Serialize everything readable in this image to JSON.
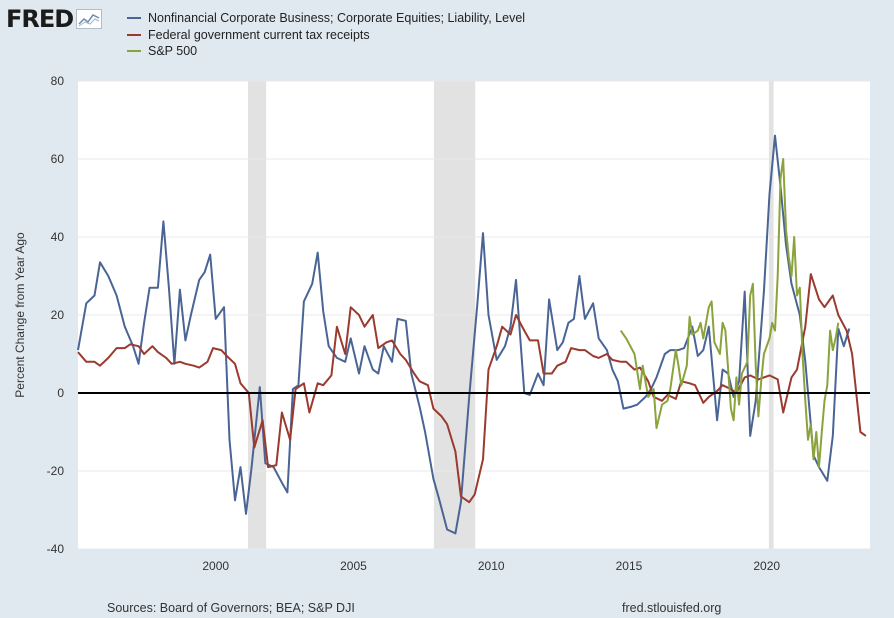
{
  "header": {
    "logo_text": "FRED",
    "logo_mark": "chart-sparkline-icon"
  },
  "legend": [
    {
      "label": "Nonfinancial Corporate Business; Corporate Equities; Liability, Level",
      "color": "#4a6595"
    },
    {
      "label": "Federal government current tax receipts",
      "color": "#9b3a2e"
    },
    {
      "label": "S&P 500",
      "color": "#8ba33c"
    }
  ],
  "footer": {
    "source": "Sources: Board of Governors; BEA; S&P DJI",
    "url": "fred.stlouisfed.org"
  },
  "chart_data": {
    "type": "line",
    "title": "",
    "xlabel": "",
    "ylabel": "Percent Change from Year Ago",
    "xlim": [
      1995.0,
      2023.75
    ],
    "ylim": [
      -40,
      80
    ],
    "x_ticks": [
      2000,
      2005,
      2010,
      2015,
      2020
    ],
    "y_ticks": [
      -40,
      -20,
      0,
      20,
      40,
      60,
      80
    ],
    "grid": true,
    "zero_line": true,
    "recessions": [
      [
        2001.17,
        2001.83
      ],
      [
        2007.92,
        2009.42
      ],
      [
        2020.08,
        2020.25
      ]
    ],
    "series": [
      {
        "name": "Nonfinancial Corporate Business; Corporate Equities; Liability, Level",
        "color": "#4a6595",
        "points": [
          [
            1995.0,
            11
          ],
          [
            1995.3,
            23
          ],
          [
            1995.6,
            25
          ],
          [
            1995.8,
            33.5
          ],
          [
            1996.1,
            30
          ],
          [
            1996.4,
            25
          ],
          [
            1996.7,
            17
          ],
          [
            1997.0,
            12
          ],
          [
            1997.2,
            7.5
          ],
          [
            1997.4,
            18
          ],
          [
            1997.6,
            27
          ],
          [
            1997.9,
            27
          ],
          [
            1998.1,
            44
          ],
          [
            1998.3,
            27
          ],
          [
            1998.5,
            7.5
          ],
          [
            1998.7,
            26.5
          ],
          [
            1998.9,
            13.5
          ],
          [
            1999.1,
            20
          ],
          [
            1999.4,
            29
          ],
          [
            1999.6,
            31
          ],
          [
            1999.8,
            35.5
          ],
          [
            2000.0,
            19
          ],
          [
            2000.3,
            22
          ],
          [
            2000.5,
            -12
          ],
          [
            2000.7,
            -27.5
          ],
          [
            2000.9,
            -19
          ],
          [
            2001.1,
            -31
          ],
          [
            2001.3,
            -19
          ],
          [
            2001.6,
            1.5
          ],
          [
            2001.8,
            -18
          ],
          [
            2002.1,
            -19
          ],
          [
            2002.4,
            -23
          ],
          [
            2002.6,
            -25.5
          ],
          [
            2002.8,
            1
          ],
          [
            2003.0,
            2
          ],
          [
            2003.2,
            23.5
          ],
          [
            2003.5,
            28
          ],
          [
            2003.7,
            36
          ],
          [
            2003.9,
            21
          ],
          [
            2004.1,
            12
          ],
          [
            2004.4,
            9
          ],
          [
            2004.7,
            8
          ],
          [
            2004.9,
            14
          ],
          [
            2005.2,
            5
          ],
          [
            2005.4,
            12
          ],
          [
            2005.7,
            6
          ],
          [
            2005.9,
            5
          ],
          [
            2006.1,
            12
          ],
          [
            2006.4,
            8
          ],
          [
            2006.6,
            19
          ],
          [
            2006.9,
            18.5
          ],
          [
            2007.1,
            5
          ],
          [
            2007.4,
            -3.5
          ],
          [
            2007.6,
            -10
          ],
          [
            2007.9,
            -22
          ],
          [
            2008.1,
            -27
          ],
          [
            2008.4,
            -35
          ],
          [
            2008.7,
            -36
          ],
          [
            2008.9,
            -28
          ],
          [
            2009.2,
            -1
          ],
          [
            2009.5,
            23
          ],
          [
            2009.7,
            41
          ],
          [
            2009.9,
            20
          ],
          [
            2010.2,
            8.5
          ],
          [
            2010.5,
            12
          ],
          [
            2010.7,
            17
          ],
          [
            2010.9,
            29
          ],
          [
            2011.2,
            0
          ],
          [
            2011.4,
            -0.5
          ],
          [
            2011.7,
            5
          ],
          [
            2011.9,
            2
          ],
          [
            2012.1,
            24
          ],
          [
            2012.4,
            11
          ],
          [
            2012.6,
            13
          ],
          [
            2012.8,
            18
          ],
          [
            2013.0,
            19
          ],
          [
            2013.2,
            30
          ],
          [
            2013.4,
            19
          ],
          [
            2013.7,
            23
          ],
          [
            2013.9,
            14
          ],
          [
            2014.2,
            11
          ],
          [
            2014.4,
            6
          ],
          [
            2014.6,
            3
          ],
          [
            2014.8,
            -4
          ],
          [
            2015.1,
            -3.5
          ],
          [
            2015.3,
            -3
          ],
          [
            2015.6,
            -1
          ],
          [
            2015.8,
            1
          ],
          [
            2016.0,
            4
          ],
          [
            2016.3,
            10
          ],
          [
            2016.5,
            11
          ],
          [
            2016.8,
            11
          ],
          [
            2017.0,
            11.5
          ],
          [
            2017.3,
            17
          ],
          [
            2017.5,
            9.5
          ],
          [
            2017.7,
            11
          ],
          [
            2017.9,
            17
          ],
          [
            2018.2,
            -7
          ],
          [
            2018.4,
            6
          ],
          [
            2018.6,
            5
          ],
          [
            2018.8,
            -1
          ],
          [
            2019.0,
            3
          ],
          [
            2019.2,
            26
          ],
          [
            2019.4,
            -11
          ],
          [
            2019.6,
            -2
          ],
          [
            2019.9,
            26
          ],
          [
            2020.1,
            51
          ],
          [
            2020.3,
            66
          ],
          [
            2020.5,
            53
          ],
          [
            2020.7,
            38
          ],
          [
            2020.9,
            28
          ],
          [
            2021.2,
            20
          ],
          [
            2021.4,
            8
          ],
          [
            2021.7,
            -16
          ],
          [
            2021.9,
            -19
          ],
          [
            2022.2,
            -22.5
          ],
          [
            2022.4,
            -11
          ],
          [
            2022.6,
            16.5
          ],
          [
            2022.8,
            12
          ],
          [
            2023.0,
            16.5
          ]
        ]
      },
      {
        "name": "Federal government current tax receipts",
        "color": "#9b3a2e",
        "points": [
          [
            1995.0,
            10.5
          ],
          [
            1995.3,
            8
          ],
          [
            1995.6,
            8
          ],
          [
            1995.8,
            7
          ],
          [
            1996.1,
            9
          ],
          [
            1996.4,
            11.5
          ],
          [
            1996.7,
            11.5
          ],
          [
            1996.9,
            12.5
          ],
          [
            1997.2,
            12
          ],
          [
            1997.4,
            10
          ],
          [
            1997.7,
            12
          ],
          [
            1997.9,
            10.5
          ],
          [
            1998.2,
            9
          ],
          [
            1998.4,
            7.5
          ],
          [
            1998.7,
            8
          ],
          [
            1998.9,
            7.5
          ],
          [
            1999.2,
            7
          ],
          [
            1999.4,
            6.5
          ],
          [
            1999.7,
            8
          ],
          [
            1999.9,
            11.5
          ],
          [
            2000.2,
            11
          ],
          [
            2000.4,
            9.5
          ],
          [
            2000.7,
            7.5
          ],
          [
            2000.9,
            2.5
          ],
          [
            2001.2,
            0
          ],
          [
            2001.4,
            -14
          ],
          [
            2001.7,
            -7
          ],
          [
            2001.9,
            -19
          ],
          [
            2002.2,
            -18.5
          ],
          [
            2002.4,
            -5
          ],
          [
            2002.7,
            -12
          ],
          [
            2002.9,
            1
          ],
          [
            2003.2,
            2.5
          ],
          [
            2003.4,
            -5
          ],
          [
            2003.7,
            2.5
          ],
          [
            2003.9,
            2
          ],
          [
            2004.2,
            4.5
          ],
          [
            2004.4,
            17
          ],
          [
            2004.7,
            10
          ],
          [
            2004.9,
            22
          ],
          [
            2005.2,
            20
          ],
          [
            2005.4,
            17
          ],
          [
            2005.7,
            20
          ],
          [
            2005.9,
            11.5
          ],
          [
            2006.2,
            13
          ],
          [
            2006.4,
            13.5
          ],
          [
            2006.7,
            10
          ],
          [
            2006.9,
            8.5
          ],
          [
            2007.2,
            5
          ],
          [
            2007.4,
            3
          ],
          [
            2007.7,
            2
          ],
          [
            2007.9,
            -4
          ],
          [
            2008.2,
            -6
          ],
          [
            2008.4,
            -8
          ],
          [
            2008.7,
            -15
          ],
          [
            2008.9,
            -26.5
          ],
          [
            2009.2,
            -28
          ],
          [
            2009.4,
            -26
          ],
          [
            2009.7,
            -17
          ],
          [
            2009.9,
            6
          ],
          [
            2010.2,
            12
          ],
          [
            2010.4,
            17
          ],
          [
            2010.7,
            15
          ],
          [
            2010.9,
            20
          ],
          [
            2011.2,
            16
          ],
          [
            2011.4,
            13.5
          ],
          [
            2011.7,
            13.5
          ],
          [
            2011.9,
            5
          ],
          [
            2012.2,
            5
          ],
          [
            2012.4,
            7
          ],
          [
            2012.7,
            8
          ],
          [
            2012.9,
            11.5
          ],
          [
            2013.2,
            11
          ],
          [
            2013.4,
            11
          ],
          [
            2013.7,
            9.5
          ],
          [
            2013.9,
            9
          ],
          [
            2014.2,
            10
          ],
          [
            2014.4,
            8.5
          ],
          [
            2014.7,
            8
          ],
          [
            2014.9,
            8
          ],
          [
            2015.2,
            6
          ],
          [
            2015.4,
            6.5
          ],
          [
            2015.7,
            3
          ],
          [
            2015.9,
            -1
          ],
          [
            2016.2,
            -2
          ],
          [
            2016.4,
            -0.5
          ],
          [
            2016.7,
            -1.5
          ],
          [
            2016.9,
            3
          ],
          [
            2017.2,
            2.5
          ],
          [
            2017.4,
            2
          ],
          [
            2017.7,
            -2.5
          ],
          [
            2017.9,
            -1
          ],
          [
            2018.2,
            0.5
          ],
          [
            2018.4,
            2
          ],
          [
            2018.7,
            1
          ],
          [
            2018.9,
            0
          ],
          [
            2019.2,
            4
          ],
          [
            2019.4,
            4.5
          ],
          [
            2019.7,
            3.5
          ],
          [
            2019.9,
            4
          ],
          [
            2020.1,
            4.5
          ],
          [
            2020.4,
            3.5
          ],
          [
            2020.6,
            -5
          ],
          [
            2020.9,
            4
          ],
          [
            2021.1,
            6
          ],
          [
            2021.4,
            17
          ],
          [
            2021.6,
            30.5
          ],
          [
            2021.9,
            24
          ],
          [
            2022.1,
            22
          ],
          [
            2022.4,
            25
          ],
          [
            2022.6,
            20
          ],
          [
            2022.9,
            16
          ],
          [
            2023.1,
            10
          ],
          [
            2023.4,
            -10
          ],
          [
            2023.6,
            -11
          ]
        ]
      },
      {
        "name": "S&P 500",
        "color": "#8ba33c",
        "points": [
          [
            2014.7,
            16
          ],
          [
            2014.9,
            14
          ],
          [
            2015.2,
            10
          ],
          [
            2015.4,
            1
          ],
          [
            2015.5,
            7
          ],
          [
            2015.7,
            -1
          ],
          [
            2015.9,
            1
          ],
          [
            2016.0,
            -9
          ],
          [
            2016.2,
            -3
          ],
          [
            2016.4,
            -2
          ],
          [
            2016.5,
            1
          ],
          [
            2016.7,
            11
          ],
          [
            2016.8,
            7
          ],
          [
            2016.9,
            2
          ],
          [
            2017.1,
            7
          ],
          [
            2017.2,
            19.5
          ],
          [
            2017.3,
            15
          ],
          [
            2017.5,
            16
          ],
          [
            2017.6,
            18
          ],
          [
            2017.7,
            14
          ],
          [
            2017.9,
            22
          ],
          [
            2018.0,
            23.5
          ],
          [
            2018.1,
            13
          ],
          [
            2018.3,
            10
          ],
          [
            2018.4,
            18
          ],
          [
            2018.5,
            16
          ],
          [
            2018.7,
            -4
          ],
          [
            2018.8,
            -7
          ],
          [
            2018.9,
            4
          ],
          [
            2019.0,
            -3
          ],
          [
            2019.1,
            5
          ],
          [
            2019.3,
            8
          ],
          [
            2019.4,
            25
          ],
          [
            2019.5,
            28
          ],
          [
            2019.6,
            7
          ],
          [
            2019.7,
            -6
          ],
          [
            2019.8,
            3
          ],
          [
            2019.9,
            10
          ],
          [
            2020.1,
            14
          ],
          [
            2020.2,
            18
          ],
          [
            2020.3,
            16
          ],
          [
            2020.4,
            30
          ],
          [
            2020.5,
            55
          ],
          [
            2020.6,
            60
          ],
          [
            2020.7,
            42
          ],
          [
            2020.8,
            35
          ],
          [
            2020.9,
            30
          ],
          [
            2021.0,
            40
          ],
          [
            2021.1,
            25
          ],
          [
            2021.2,
            27
          ],
          [
            2021.3,
            10
          ],
          [
            2021.4,
            -2
          ],
          [
            2021.5,
            -12
          ],
          [
            2021.6,
            -8
          ],
          [
            2021.7,
            -17
          ],
          [
            2021.8,
            -10
          ],
          [
            2021.9,
            -19
          ],
          [
            2022.0,
            -10
          ],
          [
            2022.1,
            -2
          ],
          [
            2022.2,
            2
          ],
          [
            2022.3,
            16
          ],
          [
            2022.4,
            11
          ],
          [
            2022.5,
            14
          ],
          [
            2022.6,
            18
          ]
        ]
      }
    ]
  }
}
